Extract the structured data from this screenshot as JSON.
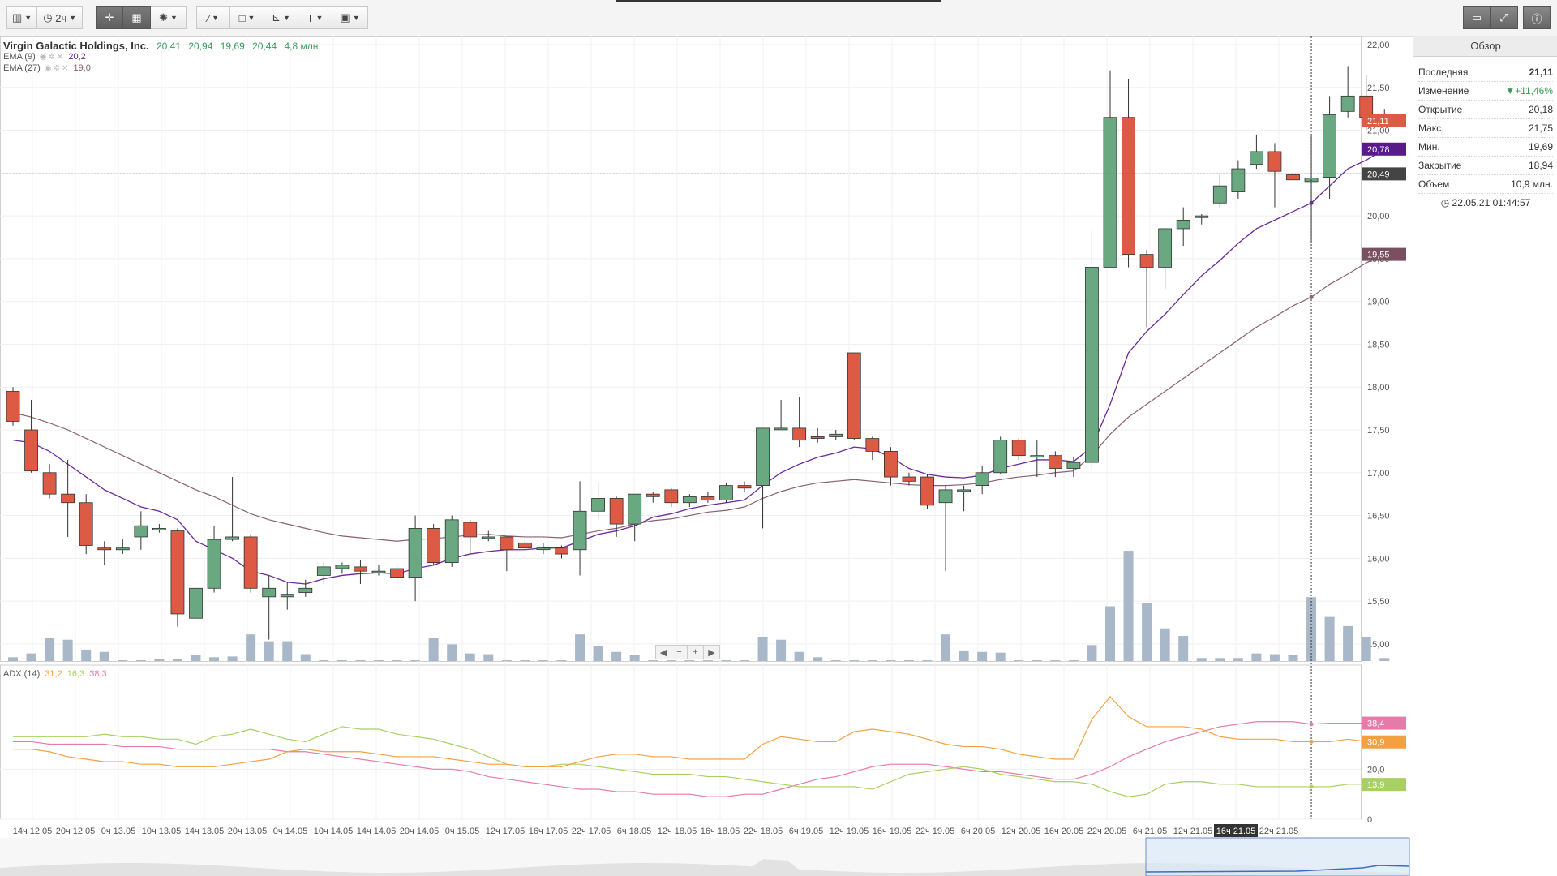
{
  "toolbar": {
    "chart_type_icon": "candlestick-icon",
    "interval_label": "2ч",
    "crosshair_icon": "crosshair-icon",
    "indicator_icon": "indicator-icon",
    "studies_icon": "studies-icon",
    "draw_icon": "draw-line-icon",
    "shapes_icon": "shapes-icon",
    "fib_icon": "fibonacci-icon",
    "text_label": "T",
    "image_icon": "image-icon",
    "right_icons": [
      "screen-icon",
      "fullscreen-icon",
      "info-icon"
    ]
  },
  "legend": {
    "title": "Virgin Galactic Holdings, Inc.",
    "open": "20,41",
    "high": "20,94",
    "low": "19,69",
    "close": "20,44",
    "volume": "4,8 млн.",
    "ema9_label": "EMA (9)",
    "ema9_value": "20,2",
    "ema27_label": "EMA (27)",
    "ema27_value": "19,0",
    "adx_label": "ADX (14)",
    "adx_v1": "31,2",
    "adx_v2": "16,3",
    "adx_v3": "38,3"
  },
  "panel": {
    "title": "Обзор",
    "rows": [
      {
        "k": "Последняя",
        "v": "21,11"
      },
      {
        "k": "Изменение",
        "v": "▼+11,46%"
      },
      {
        "k": "Открытие",
        "v": "20,18"
      },
      {
        "k": "Макс.",
        "v": "21,75"
      },
      {
        "k": "Мин.",
        "v": "19,69"
      },
      {
        "k": "Закрытие",
        "v": "18,94"
      },
      {
        "k": "Объем",
        "v": "10,9 млн."
      }
    ],
    "time": "22.05.21 01:44:57"
  },
  "nav_buttons": [
    "◀",
    "−",
    "+",
    "▶"
  ],
  "colors": {
    "up": "#6aa882",
    "down": "#dd5a45",
    "ema9": "#6a2a9a",
    "ema27": "#8a6070",
    "volume": "#a8b8c8",
    "adx": "#f4a040",
    "di_plus": "#a8d060",
    "di_minus": "#e67aa8"
  },
  "chart_data": {
    "type": "candlestick",
    "price_axis": [
      "22,00",
      "21,50",
      "21,00",
      "20,50",
      "20,00",
      "19,50",
      "19,00",
      "18,50",
      "18,00",
      "17,50",
      "17,00",
      "16,50",
      "16,00",
      "15,50",
      "15,00"
    ],
    "ylim": [
      14.8,
      22.0
    ],
    "adx_axis": [
      "20,0",
      "0"
    ],
    "x_labels": [
      "14ч 12.05",
      "20ч 12.05",
      "0ч 13.05",
      "10ч 13.05",
      "14ч 13.05",
      "20ч 13.05",
      "0ч 14.05",
      "10ч 14.05",
      "14ч 14.05",
      "20ч 14.05",
      "0ч 15.05",
      "12ч 17.05",
      "16ч 17.05",
      "22ч 17.05",
      "6ч 18.05",
      "12ч 18.05",
      "16ч 18.05",
      "22ч 18.05",
      "6ч 19.05",
      "12ч 19.05",
      "16ч 19.05",
      "22ч 19.05",
      "6ч 20.05",
      "12ч 20.05",
      "16ч 20.05",
      "22ч 20.05",
      "6ч 21.05",
      "12ч 21.05",
      "16ч 21.05",
      "22ч 21.05"
    ],
    "crosshair_x_label": "16ч 21.05",
    "price_tags": [
      {
        "label": "21,11",
        "value": 21.11,
        "color": "#dd5a45"
      },
      {
        "label": "20,78",
        "value": 20.78,
        "color": "#5a1a8a"
      },
      {
        "label": "20,49",
        "value": 20.49,
        "color": "#444444"
      },
      {
        "label": "19,55",
        "value": 19.55,
        "color": "#7a5060"
      }
    ],
    "adx_tags": [
      {
        "label": "38,4",
        "value": 38.4,
        "color": "#e67aa8"
      },
      {
        "label": "30,9",
        "value": 30.9,
        "color": "#f4a040"
      },
      {
        "label": "13,9",
        "value": 13.9,
        "color": "#a8d060"
      }
    ],
    "candles": [
      [
        17.95,
        17.6,
        18.0,
        17.55
      ],
      [
        17.5,
        17.02,
        17.85,
        17.0
      ],
      [
        17.0,
        16.75,
        17.1,
        16.7
      ],
      [
        16.75,
        16.65,
        17.15,
        16.25
      ],
      [
        16.65,
        16.15,
        16.75,
        16.05
      ],
      [
        16.12,
        16.1,
        16.2,
        15.92
      ],
      [
        16.1,
        16.12,
        16.22,
        16.05
      ],
      [
        16.25,
        16.38,
        16.55,
        16.1
      ],
      [
        16.35,
        16.35,
        16.4,
        16.3
      ],
      [
        16.32,
        15.35,
        16.35,
        15.2
      ],
      [
        15.3,
        15.65,
        15.65,
        15.3
      ],
      [
        15.65,
        16.22,
        16.38,
        15.6
      ],
      [
        16.22,
        16.25,
        16.95,
        16.2
      ],
      [
        16.25,
        15.65,
        16.28,
        15.6
      ],
      [
        15.55,
        15.65,
        15.8,
        15.05
      ],
      [
        15.55,
        15.58,
        15.72,
        15.4
      ],
      [
        15.6,
        15.65,
        15.75,
        15.55
      ],
      [
        15.8,
        15.9,
        15.95,
        15.7
      ],
      [
        15.88,
        15.92,
        15.95,
        15.82
      ],
      [
        15.9,
        15.85,
        15.98,
        15.7
      ],
      [
        15.85,
        15.85,
        15.92,
        15.8
      ],
      [
        15.88,
        15.78,
        15.92,
        15.7
      ],
      [
        15.78,
        16.35,
        16.5,
        15.5
      ],
      [
        16.35,
        15.95,
        16.4,
        15.92
      ],
      [
        15.95,
        16.45,
        16.5,
        15.9
      ],
      [
        16.42,
        16.25,
        16.45,
        16.05
      ],
      [
        16.25,
        16.25,
        16.32,
        16.2
      ],
      [
        16.25,
        16.1,
        16.25,
        15.85
      ],
      [
        16.18,
        16.12,
        16.22,
        16.1
      ],
      [
        16.12,
        16.12,
        16.18,
        16.05
      ],
      [
        16.12,
        16.05,
        16.15,
        16.0
      ],
      [
        16.1,
        16.55,
        16.9,
        15.8
      ],
      [
        16.55,
        16.7,
        16.88,
        16.45
      ],
      [
        16.7,
        16.4,
        16.72,
        16.25
      ],
      [
        16.4,
        16.75,
        16.75,
        16.2
      ],
      [
        16.75,
        16.72,
        16.78,
        16.65
      ],
      [
        16.8,
        16.65,
        16.82,
        16.6
      ],
      [
        16.65,
        16.72,
        16.75,
        16.6
      ],
      [
        16.72,
        16.68,
        16.78,
        16.65
      ],
      [
        16.68,
        16.85,
        16.88,
        16.65
      ],
      [
        16.85,
        16.82,
        16.9,
        16.78
      ],
      [
        16.85,
        17.52,
        17.52,
        16.35
      ],
      [
        17.52,
        17.52,
        17.85,
        17.5
      ],
      [
        17.52,
        17.38,
        17.88,
        17.3
      ],
      [
        17.42,
        17.4,
        17.52,
        17.35
      ],
      [
        17.42,
        17.45,
        17.5,
        17.38
      ],
      [
        18.4,
        17.4,
        18.4,
        17.38
      ],
      [
        17.4,
        17.25,
        17.42,
        17.15
      ],
      [
        17.25,
        16.95,
        17.3,
        16.85
      ],
      [
        16.95,
        16.9,
        17.0,
        16.85
      ],
      [
        16.95,
        16.62,
        16.98,
        16.58
      ],
      [
        16.65,
        16.8,
        16.85,
        15.85
      ],
      [
        16.8,
        16.8,
        16.85,
        16.55
      ],
      [
        16.85,
        17.0,
        17.08,
        16.75
      ],
      [
        17.0,
        17.38,
        17.42,
        16.98
      ],
      [
        17.38,
        17.2,
        17.4,
        17.15
      ],
      [
        17.2,
        17.2,
        17.38,
        16.95
      ],
      [
        17.2,
        17.05,
        17.25,
        16.95
      ],
      [
        17.05,
        17.12,
        17.18,
        16.95
      ],
      [
        17.12,
        19.4,
        19.85,
        17.02
      ],
      [
        19.4,
        21.15,
        21.7,
        19.4
      ],
      [
        21.15,
        19.55,
        21.6,
        19.4
      ],
      [
        19.55,
        19.4,
        19.6,
        18.7
      ],
      [
        19.4,
        19.85,
        19.85,
        19.15
      ],
      [
        19.85,
        19.95,
        20.1,
        19.65
      ],
      [
        19.98,
        20.0,
        20.02,
        19.9
      ],
      [
        20.15,
        20.35,
        20.5,
        20.1
      ],
      [
        20.28,
        20.55,
        20.65,
        20.2
      ],
      [
        20.6,
        20.75,
        20.95,
        20.55
      ],
      [
        20.75,
        20.52,
        20.85,
        20.1
      ],
      [
        20.48,
        20.42,
        20.55,
        20.22
      ],
      [
        20.4,
        20.44,
        20.94,
        19.69
      ],
      [
        20.45,
        21.18,
        21.4,
        20.2
      ],
      [
        21.22,
        21.4,
        21.75,
        21.15
      ],
      [
        21.4,
        21.15,
        21.65,
        21.0
      ],
      [
        21.15,
        21.1,
        21.25,
        21.05
      ]
    ],
    "volumes": [
      0.5,
      1.0,
      3.0,
      2.8,
      1.5,
      1.2,
      0.1,
      0.1,
      0.3,
      0.3,
      0.8,
      0.5,
      0.6,
      3.5,
      2.6,
      2.6,
      0.9,
      0.1,
      0.1,
      0.1,
      0.1,
      0.1,
      0.1,
      3.0,
      2.2,
      1.0,
      0.9,
      0.1,
      0.1,
      0.1,
      0.1,
      3.5,
      2.0,
      1.2,
      0.8,
      0.1,
      0.1,
      0.1,
      0.1,
      0.1,
      0.1,
      3.2,
      2.8,
      1.2,
      0.5,
      0.1,
      0.1,
      0.1,
      0.1,
      0.1,
      0.1,
      3.5,
      1.4,
      1.2,
      1.1,
      0.1,
      0.1,
      0.1,
      0.1,
      2.1,
      7.2,
      14.5,
      7.6,
      4.3,
      3.3,
      0.4,
      0.4,
      0.4,
      1.0,
      0.9,
      0.8,
      8.4,
      5.8,
      4.6,
      3.2,
      0.4
    ],
    "volume_max": 16,
    "ema9": [
      17.38,
      17.35,
      17.25,
      17.1,
      16.95,
      16.8,
      16.7,
      16.6,
      16.55,
      16.45,
      16.2,
      16.1,
      16.0,
      15.85,
      15.8,
      15.72,
      15.7,
      15.76,
      15.8,
      15.82,
      15.83,
      15.82,
      15.88,
      15.92,
      16.0,
      16.05,
      16.08,
      16.1,
      16.1,
      16.12,
      16.12,
      16.2,
      16.28,
      16.32,
      16.38,
      16.48,
      16.52,
      16.58,
      16.62,
      16.65,
      16.68,
      16.85,
      17.0,
      17.1,
      17.18,
      17.23,
      17.3,
      17.28,
      17.18,
      17.05,
      16.98,
      16.95,
      16.94,
      16.97,
      17.05,
      17.1,
      17.15,
      17.15,
      17.13,
      17.3,
      17.8,
      18.4,
      18.65,
      18.85,
      19.08,
      19.3,
      19.48,
      19.68,
      19.85,
      19.95,
      20.05,
      20.15,
      20.35,
      20.55,
      20.65,
      20.78
    ],
    "ema27": [
      17.7,
      17.65,
      17.58,
      17.5,
      17.4,
      17.3,
      17.2,
      17.1,
      17.0,
      16.9,
      16.8,
      16.72,
      16.62,
      16.52,
      16.45,
      16.4,
      16.35,
      16.3,
      16.26,
      16.24,
      16.22,
      16.2,
      16.22,
      16.23,
      16.25,
      16.27,
      16.28,
      16.26,
      16.25,
      16.25,
      16.24,
      16.28,
      16.32,
      16.35,
      16.4,
      16.44,
      16.46,
      16.5,
      16.54,
      16.56,
      16.6,
      16.7,
      16.78,
      16.84,
      16.88,
      16.9,
      16.92,
      16.9,
      16.88,
      16.86,
      16.85,
      16.85,
      16.86,
      16.88,
      16.92,
      16.95,
      16.97,
      17.0,
      17.02,
      17.2,
      17.45,
      17.65,
      17.8,
      17.95,
      18.1,
      18.25,
      18.4,
      18.55,
      18.7,
      18.82,
      18.95,
      19.05,
      19.2,
      19.32,
      19.45,
      19.55
    ],
    "adx": [
      28,
      28,
      27,
      25,
      24,
      23,
      23,
      22,
      22,
      21,
      21,
      21,
      22,
      23,
      24,
      27,
      28,
      27,
      27,
      27,
      26,
      25,
      25,
      25,
      24,
      23,
      22,
      22,
      21,
      21,
      21,
      23,
      25,
      26,
      26,
      25,
      25,
      24,
      24,
      24,
      24,
      30,
      33,
      32,
      31,
      31,
      35,
      36,
      35,
      34,
      32,
      30,
      29,
      29,
      28,
      26,
      25,
      24,
      24,
      40,
      49,
      41,
      37,
      37,
      37,
      36,
      33,
      32,
      32,
      32,
      31,
      31,
      31,
      32,
      31,
      30.9
    ],
    "di_plus": [
      33,
      33,
      33,
      33,
      33,
      34,
      33,
      33,
      32,
      32,
      30,
      33,
      34,
      36,
      34,
      32,
      31,
      34,
      37,
      36,
      36,
      34,
      33,
      32,
      30,
      28,
      25,
      22,
      21,
      21,
      22,
      22,
      21,
      20,
      19,
      18,
      18,
      18,
      17,
      17,
      16,
      15,
      14,
      13,
      13,
      13,
      13,
      12,
      15,
      18,
      19,
      20,
      21,
      20,
      18,
      17,
      16,
      15,
      15,
      14,
      11,
      9,
      10,
      14,
      15,
      15,
      14,
      14,
      13,
      13,
      13,
      13,
      13,
      14,
      14,
      13.9
    ],
    "di_minus": [
      31,
      31,
      30,
      30,
      30,
      30,
      29,
      29,
      29,
      28,
      28,
      28,
      28,
      28,
      28,
      27,
      27,
      26,
      25,
      24,
      23,
      22,
      21,
      20,
      20,
      19,
      17,
      16,
      15,
      14,
      13,
      12,
      12,
      11,
      11,
      10,
      10,
      10,
      9,
      9,
      10,
      10,
      12,
      14,
      16,
      17,
      19,
      21,
      22,
      22,
      22,
      21,
      20,
      19,
      19,
      18,
      17,
      16,
      16,
      18,
      21,
      25,
      28,
      31,
      33,
      35,
      37,
      38,
      39,
      39,
      39,
      38,
      38.4,
      38.4,
      38.4,
      38.4
    ]
  }
}
